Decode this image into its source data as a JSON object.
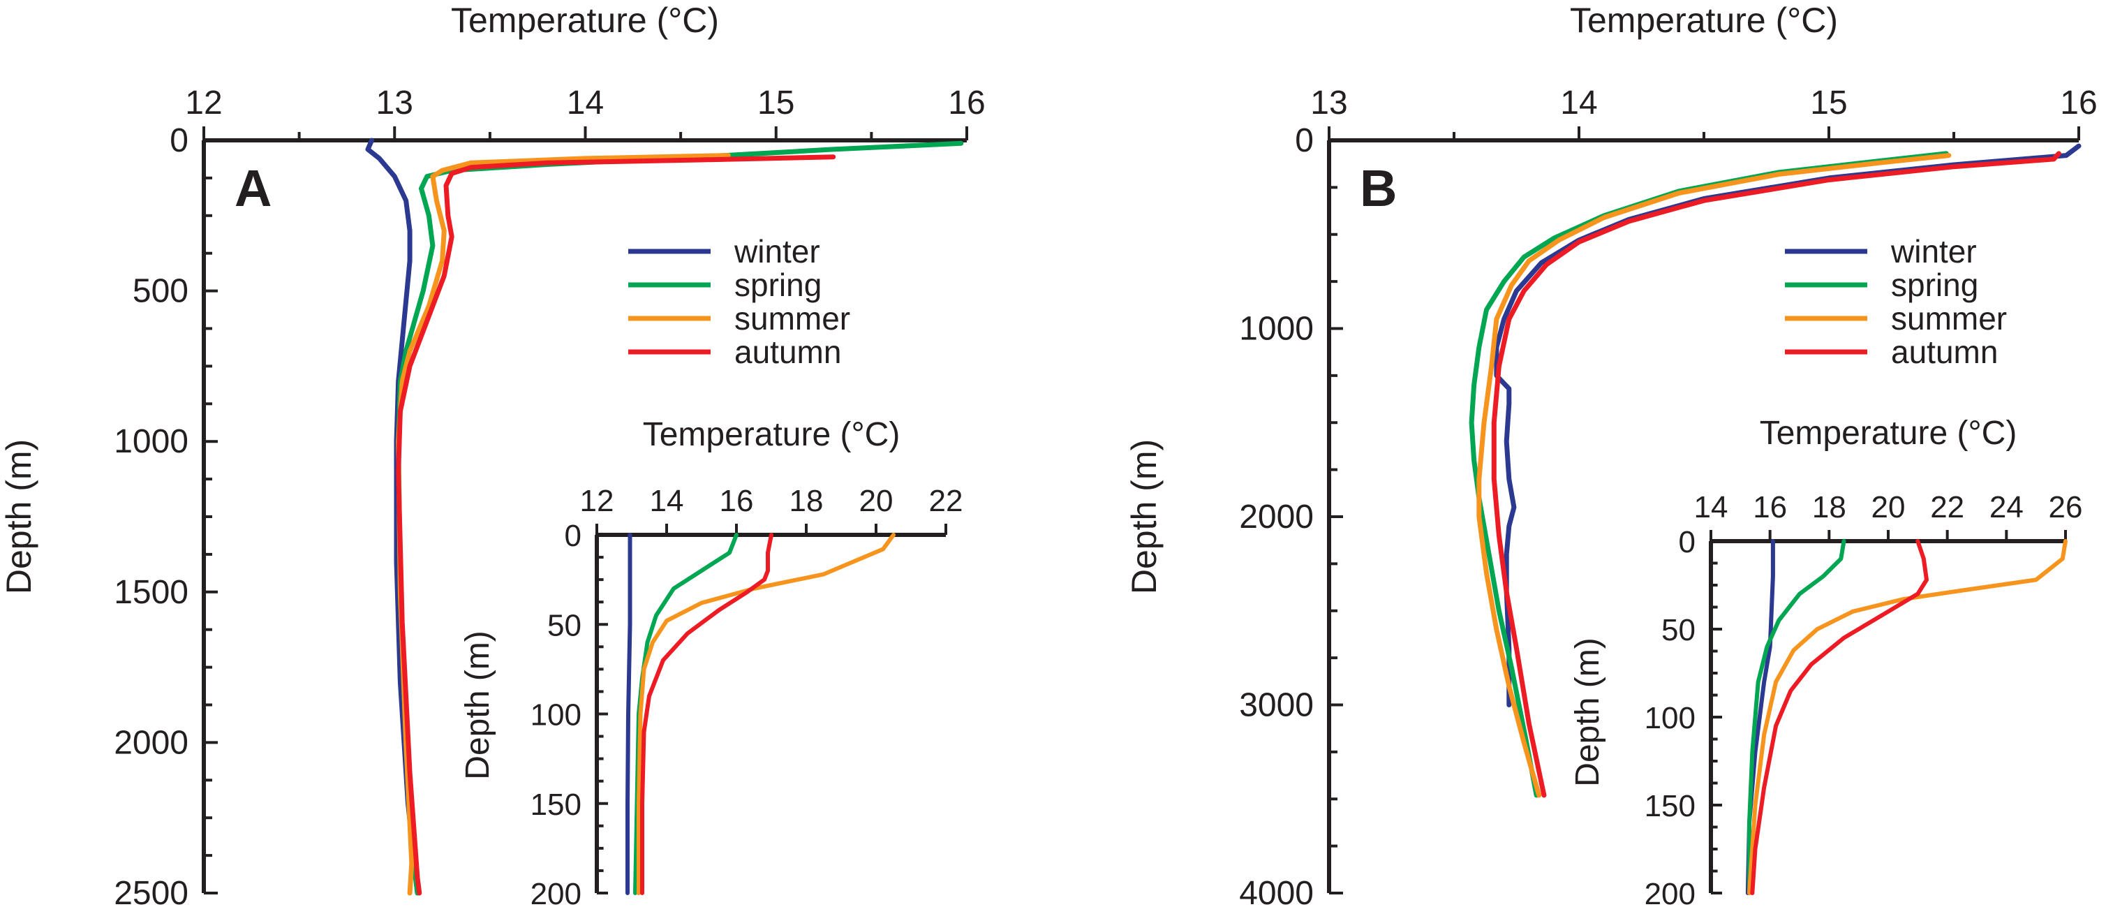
{
  "colors": {
    "winter": "#2b3990",
    "spring": "#00a651",
    "summer": "#f7941d",
    "autumn": "#ed1c24",
    "axis": "#231f20"
  },
  "chart_data": [
    {
      "id": "A-main",
      "type": "line",
      "panel_label": "A",
      "xlabel": "Temperature (°C)",
      "ylabel": "Depth (m)",
      "xlim": [
        12,
        16
      ],
      "ylim": [
        0,
        2500
      ],
      "xticks": [
        12,
        13,
        14,
        15,
        16
      ],
      "yticks": [
        0,
        500,
        1000,
        1500,
        2000,
        2500
      ],
      "legend": [
        "winter",
        "spring",
        "summer",
        "autumn"
      ],
      "series": [
        {
          "name": "winter",
          "points": [
            [
              12.88,
              0
            ],
            [
              12.86,
              30
            ],
            [
              12.92,
              60
            ],
            [
              13.0,
              120
            ],
            [
              13.06,
              200
            ],
            [
              13.08,
              300
            ],
            [
              13.08,
              400
            ],
            [
              13.05,
              600
            ],
            [
              13.02,
              800
            ],
            [
              13.01,
              1000
            ],
            [
              13.01,
              1400
            ],
            [
              13.03,
              1800
            ],
            [
              13.07,
              2200
            ],
            [
              13.12,
              2500
            ]
          ]
        },
        {
          "name": "spring",
          "points": [
            [
              15.97,
              10
            ],
            [
              15.3,
              30
            ],
            [
              14.6,
              55
            ],
            [
              13.8,
              80
            ],
            [
              13.3,
              100
            ],
            [
              13.17,
              120
            ],
            [
              13.14,
              160
            ],
            [
              13.18,
              250
            ],
            [
              13.2,
              350
            ],
            [
              13.15,
              500
            ],
            [
              13.06,
              700
            ],
            [
              13.03,
              800
            ],
            [
              13.02,
              1000
            ],
            [
              13.03,
              1500
            ],
            [
              13.06,
              2000
            ],
            [
              13.1,
              2400
            ],
            [
              13.12,
              2500
            ]
          ]
        },
        {
          "name": "summer",
          "points": [
            [
              14.75,
              50
            ],
            [
              14.0,
              60
            ],
            [
              13.4,
              75
            ],
            [
              13.25,
              100
            ],
            [
              13.2,
              120
            ],
            [
              13.22,
              200
            ],
            [
              13.26,
              300
            ],
            [
              13.25,
              400
            ],
            [
              13.18,
              550
            ],
            [
              13.08,
              700
            ],
            [
              13.04,
              800
            ],
            [
              13.02,
              1000
            ],
            [
              13.03,
              1500
            ],
            [
              13.06,
              2000
            ],
            [
              13.09,
              2400
            ],
            [
              13.08,
              2500
            ]
          ]
        },
        {
          "name": "autumn",
          "points": [
            [
              15.3,
              55
            ],
            [
              14.6,
              65
            ],
            [
              13.8,
              75
            ],
            [
              13.4,
              90
            ],
            [
              13.3,
              110
            ],
            [
              13.27,
              150
            ],
            [
              13.28,
              250
            ],
            [
              13.3,
              320
            ],
            [
              13.26,
              450
            ],
            [
              13.17,
              600
            ],
            [
              13.08,
              750
            ],
            [
              13.03,
              900
            ],
            [
              13.02,
              1100
            ],
            [
              13.04,
              1600
            ],
            [
              13.08,
              2100
            ],
            [
              13.12,
              2450
            ],
            [
              13.13,
              2500
            ]
          ]
        }
      ]
    },
    {
      "id": "A-inset",
      "type": "line",
      "xlabel": "Temperature (°C)",
      "ylabel": "Depth (m)",
      "xlim": [
        12,
        22
      ],
      "ylim": [
        0,
        200
      ],
      "xticks": [
        12,
        14,
        16,
        18,
        20,
        22
      ],
      "yticks": [
        0,
        50,
        100,
        150,
        200
      ],
      "series": [
        {
          "name": "winter",
          "points": [
            [
              12.95,
              0
            ],
            [
              12.95,
              50
            ],
            [
              12.9,
              100
            ],
            [
              12.88,
              150
            ],
            [
              12.88,
              200
            ]
          ]
        },
        {
          "name": "spring",
          "points": [
            [
              16.0,
              0
            ],
            [
              15.8,
              10
            ],
            [
              15.0,
              20
            ],
            [
              14.2,
              30
            ],
            [
              13.7,
              45
            ],
            [
              13.45,
              60
            ],
            [
              13.3,
              80
            ],
            [
              13.2,
              100
            ],
            [
              13.15,
              150
            ],
            [
              13.1,
              200
            ]
          ]
        },
        {
          "name": "summer",
          "points": [
            [
              20.5,
              0
            ],
            [
              20.2,
              8
            ],
            [
              18.5,
              22
            ],
            [
              16.5,
              30
            ],
            [
              15.0,
              38
            ],
            [
              14.0,
              48
            ],
            [
              13.6,
              60
            ],
            [
              13.35,
              75
            ],
            [
              13.25,
              100
            ],
            [
              13.2,
              150
            ],
            [
              13.2,
              200
            ]
          ]
        },
        {
          "name": "autumn",
          "points": [
            [
              17.0,
              0
            ],
            [
              16.9,
              10
            ],
            [
              16.9,
              20
            ],
            [
              16.8,
              25
            ],
            [
              16.3,
              32
            ],
            [
              15.5,
              42
            ],
            [
              14.6,
              55
            ],
            [
              13.9,
              70
            ],
            [
              13.5,
              90
            ],
            [
              13.35,
              110
            ],
            [
              13.3,
              150
            ],
            [
              13.3,
              200
            ]
          ]
        }
      ]
    },
    {
      "id": "B-main",
      "type": "line",
      "panel_label": "B",
      "xlabel": "Temperature (°C)",
      "ylabel": "Depth (m)",
      "xlim": [
        13,
        16
      ],
      "ylim": [
        0,
        4000
      ],
      "xticks": [
        13,
        14,
        15,
        16
      ],
      "yticks": [
        0,
        1000,
        2000,
        3000,
        4000
      ],
      "legend": [
        "winter",
        "spring",
        "summer",
        "autumn"
      ],
      "series": [
        {
          "name": "winter",
          "points": [
            [
              16.0,
              30
            ],
            [
              15.95,
              80
            ],
            [
              15.5,
              130
            ],
            [
              15.0,
              200
            ],
            [
              14.5,
              310
            ],
            [
              14.2,
              420
            ],
            [
              14.0,
              530
            ],
            [
              13.85,
              650
            ],
            [
              13.75,
              800
            ],
            [
              13.7,
              950
            ],
            [
              13.67,
              1100
            ],
            [
              13.67,
              1250
            ],
            [
              13.72,
              1320
            ],
            [
              13.72,
              1400
            ],
            [
              13.71,
              1600
            ],
            [
              13.72,
              1800
            ],
            [
              13.74,
              1950
            ],
            [
              13.72,
              2050
            ],
            [
              13.71,
              2200
            ],
            [
              13.71,
              2400
            ],
            [
              13.72,
              2700
            ],
            [
              13.72,
              3000
            ]
          ]
        },
        {
          "name": "spring",
          "points": [
            [
              15.47,
              70
            ],
            [
              15.2,
              110
            ],
            [
              14.8,
              170
            ],
            [
              14.4,
              270
            ],
            [
              14.1,
              400
            ],
            [
              13.9,
              520
            ],
            [
              13.78,
              620
            ],
            [
              13.7,
              750
            ],
            [
              13.63,
              900
            ],
            [
              13.6,
              1100
            ],
            [
              13.58,
              1300
            ],
            [
              13.57,
              1500
            ],
            [
              13.58,
              1700
            ],
            [
              13.6,
              1900
            ],
            [
              13.64,
              2200
            ],
            [
              13.68,
              2500
            ],
            [
              13.73,
              2800
            ],
            [
              13.79,
              3200
            ],
            [
              13.83,
              3480
            ]
          ]
        },
        {
          "name": "summer",
          "points": [
            [
              15.48,
              80
            ],
            [
              15.2,
              120
            ],
            [
              14.8,
              180
            ],
            [
              14.4,
              280
            ],
            [
              14.1,
              410
            ],
            [
              13.92,
              530
            ],
            [
              13.8,
              640
            ],
            [
              13.73,
              770
            ],
            [
              13.67,
              950
            ],
            [
              13.65,
              1200
            ],
            [
              13.62,
              1500
            ],
            [
              13.6,
              1800
            ],
            [
              13.6,
              2000
            ],
            [
              13.63,
              2300
            ],
            [
              13.67,
              2600
            ],
            [
              13.72,
              2900
            ],
            [
              13.78,
              3200
            ],
            [
              13.84,
              3480
            ]
          ]
        },
        {
          "name": "autumn",
          "points": [
            [
              15.92,
              70
            ],
            [
              15.9,
              100
            ],
            [
              15.5,
              140
            ],
            [
              15.0,
              210
            ],
            [
              14.5,
              320
            ],
            [
              14.2,
              430
            ],
            [
              14.0,
              540
            ],
            [
              13.87,
              660
            ],
            [
              13.78,
              800
            ],
            [
              13.72,
              950
            ],
            [
              13.68,
              1200
            ],
            [
              13.66,
              1500
            ],
            [
              13.66,
              1800
            ],
            [
              13.68,
              2100
            ],
            [
              13.71,
              2400
            ],
            [
              13.75,
              2700
            ],
            [
              13.8,
              3100
            ],
            [
              13.86,
              3480
            ]
          ]
        }
      ]
    },
    {
      "id": "B-inset",
      "type": "line",
      "xlabel": "Temperature (°C)",
      "ylabel": "Depth (m)",
      "xlim": [
        14,
        26
      ],
      "ylim": [
        0,
        200
      ],
      "xticks": [
        14,
        16,
        18,
        20,
        22,
        24,
        26
      ],
      "yticks": [
        0,
        50,
        100,
        150,
        200
      ],
      "series": [
        {
          "name": "winter",
          "points": [
            [
              16.1,
              0
            ],
            [
              16.1,
              20
            ],
            [
              16.05,
              40
            ],
            [
              16.0,
              60
            ],
            [
              15.8,
              80
            ],
            [
              15.5,
              120
            ],
            [
              15.3,
              160
            ],
            [
              15.25,
              200
            ]
          ]
        },
        {
          "name": "spring",
          "points": [
            [
              18.5,
              0
            ],
            [
              18.4,
              10
            ],
            [
              17.8,
              20
            ],
            [
              17.0,
              30
            ],
            [
              16.3,
              45
            ],
            [
              15.9,
              60
            ],
            [
              15.6,
              80
            ],
            [
              15.4,
              120
            ],
            [
              15.3,
              160
            ],
            [
              15.3,
              200
            ]
          ]
        },
        {
          "name": "summer",
          "points": [
            [
              26.0,
              0
            ],
            [
              25.9,
              10
            ],
            [
              25.0,
              22
            ],
            [
              22.5,
              28
            ],
            [
              20.5,
              33
            ],
            [
              18.8,
              40
            ],
            [
              17.6,
              50
            ],
            [
              16.8,
              62
            ],
            [
              16.2,
              80
            ],
            [
              15.8,
              110
            ],
            [
              15.5,
              150
            ],
            [
              15.3,
              200
            ]
          ]
        },
        {
          "name": "autumn",
          "points": [
            [
              21.0,
              0
            ],
            [
              21.2,
              10
            ],
            [
              21.3,
              22
            ],
            [
              21.0,
              30
            ],
            [
              20.0,
              40
            ],
            [
              18.5,
              55
            ],
            [
              17.4,
              70
            ],
            [
              16.7,
              85
            ],
            [
              16.2,
              105
            ],
            [
              15.8,
              140
            ],
            [
              15.5,
              175
            ],
            [
              15.4,
              200
            ]
          ]
        }
      ]
    }
  ]
}
